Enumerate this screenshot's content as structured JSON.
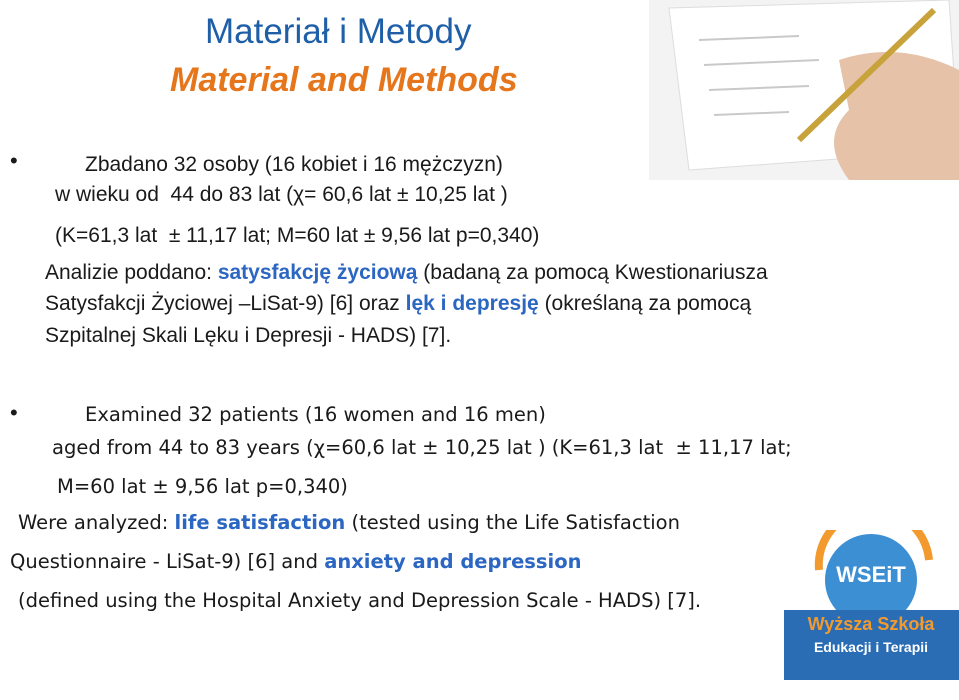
{
  "title": "Materiał i Metody",
  "subtitle": "Material and Methods",
  "polish": {
    "line1": "Zbadano 32 osoby (16 kobiet i 16 mężczyzn)",
    "line2": "w wieku od  44 do 83 lat (χ= 60,6 lat ± 10,25 lat )",
    "line3": "(K=61,3 lat  ± 11,17 lat; M=60 lat ± 9,56 lat p=0,340)",
    "line4": [
      "Analizie poddano:",
      "satysfakcję życiową",
      "(badaną za pomocą Kwestionariusza"
    ],
    "line5": [
      "Satysfakcji Życiowej –LiSat-9) [6] oraz",
      "lęk i depresję",
      "(określaną za pomocą"
    ],
    "line6": "Szpitalnej Skali Lęku i Depresji - HADS) [7]."
  },
  "english": {
    "line1": "Examined 32 patients (16 women and 16 men)",
    "line2": "aged from 44 to 83 years (χ=60,6 lat ± 10,25 lat ) (K=61,3 lat  ± 11,17 lat;",
    "line3": "M=60 lat ± 9,56 lat p=0,340)",
    "line4": [
      "Were analyzed:",
      "life satisfaction",
      "(tested using the Life Satisfaction"
    ],
    "line5": [
      "Questionnaire - LiSat-9) [6] and",
      "anxiety and depression"
    ],
    "line6": "(defined using the Hospital Anxiety and Depression Scale - HADS) [7]."
  },
  "logo": {
    "abbr": "WSEiT",
    "line1": "Wyższa Szkoła",
    "line2": "Edukacji i Terapii"
  }
}
